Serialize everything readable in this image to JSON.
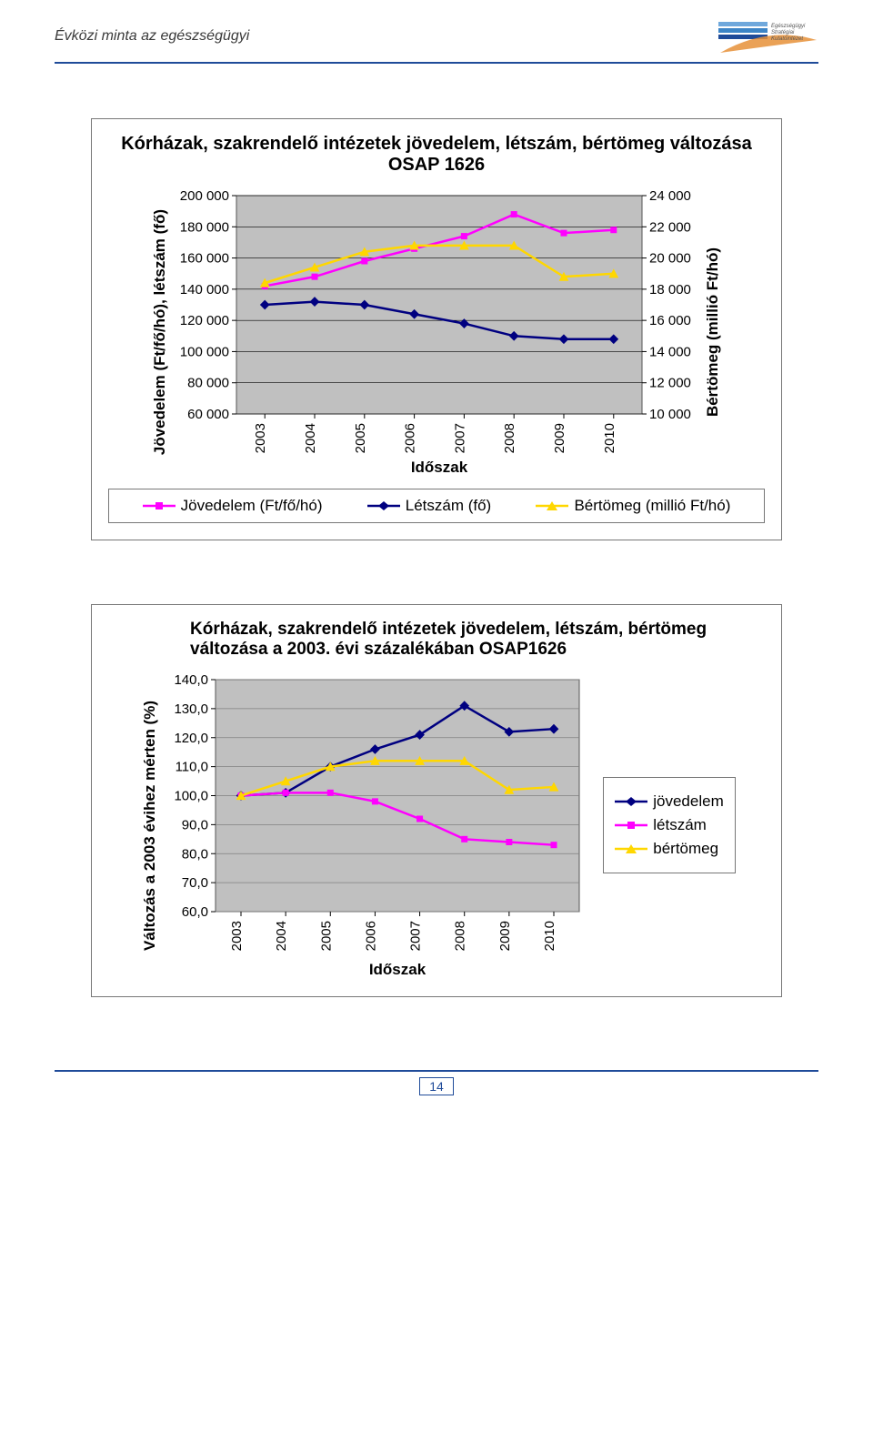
{
  "header": {
    "running_title": "Évközi minta az egészségügyi"
  },
  "footer": {
    "page_number": "14"
  },
  "chart1": {
    "type": "line",
    "title": "Kórházak, szakrendelő intézetek jövedelem, létszám, bértömeg változása OSAP 1626",
    "x_categories": [
      "2003",
      "2004",
      "2005",
      "2006",
      "2007",
      "2008",
      "2009",
      "2010"
    ],
    "x_label": "Időszak",
    "y_left_label": "Jövedelem (Ft/fő/hó),\nlétszám (fő)",
    "y_right_label": "Bértömeg (millió\nFt/hó)",
    "y_left_ticks": [
      60000,
      80000,
      100000,
      120000,
      140000,
      160000,
      180000,
      200000
    ],
    "y_left_tick_labels": [
      "60 000",
      "80 000",
      "100 000",
      "120 000",
      "140 000",
      "160 000",
      "180 000",
      "200 000"
    ],
    "y_right_ticks": [
      10000,
      12000,
      14000,
      16000,
      18000,
      20000,
      22000,
      24000
    ],
    "y_right_tick_labels": [
      "10 000",
      "12 000",
      "14 000",
      "16 000",
      "18 000",
      "20 000",
      "22 000",
      "24 000"
    ],
    "series": {
      "jovedelem": {
        "label": "Jövedelem (Ft/fő/hó)",
        "color": "#ff00ff",
        "marker": "square",
        "axis": "left",
        "values": [
          142000,
          148000,
          158000,
          166000,
          174000,
          188000,
          176000,
          178000
        ]
      },
      "letszam": {
        "label": "Létszám (fő)",
        "color": "#000080",
        "marker": "diamond",
        "axis": "left",
        "values": [
          130000,
          132000,
          130000,
          124000,
          118000,
          110000,
          108000,
          108000
        ]
      },
      "bertomeg": {
        "label": "Bértömeg (millió Ft/hó)",
        "color": "#ffd700",
        "marker": "triangle",
        "axis": "right",
        "values": [
          18400,
          19400,
          20400,
          20800,
          20800,
          20800,
          18800,
          19000
        ]
      }
    },
    "plot_bg": "#c0c0c0",
    "grid_color": "#000000",
    "line_width": 2.5,
    "marker_size": 7
  },
  "chart2": {
    "type": "line",
    "title": "Kórházak, szakrendelő intézetek jövedelem, létszám, bértömeg változása a 2003. évi százalékában OSAP1626",
    "x_categories": [
      "2003",
      "2004",
      "2005",
      "2006",
      "2007",
      "2008",
      "2009",
      "2010"
    ],
    "x_label": "Időszak",
    "y_label": "Változás a 2003 évihez\nmérten  (%)",
    "y_ticks": [
      60,
      70,
      80,
      90,
      100,
      110,
      120,
      130,
      140
    ],
    "y_tick_labels": [
      "60,0",
      "70,0",
      "80,0",
      "90,0",
      "100,0",
      "110,0",
      "120,0",
      "130,0",
      "140,0"
    ],
    "series": {
      "jovedelem": {
        "label": "jövedelem",
        "color": "#000080",
        "marker": "diamond",
        "values": [
          100,
          101,
          110,
          116,
          121,
          131,
          122,
          123
        ]
      },
      "letszam": {
        "label": "létszám",
        "color": "#ff00ff",
        "marker": "square",
        "values": [
          100,
          101,
          101,
          98,
          92,
          85,
          84,
          83
        ]
      },
      "bertomeg": {
        "label": "bértömeg",
        "color": "#ffd700",
        "marker": "triangle",
        "values": [
          100,
          105,
          110,
          112,
          112,
          112,
          102,
          103
        ]
      }
    },
    "plot_bg": "#c0c0c0",
    "grid_color": "#808080",
    "line_width": 2.5,
    "marker_size": 7
  }
}
